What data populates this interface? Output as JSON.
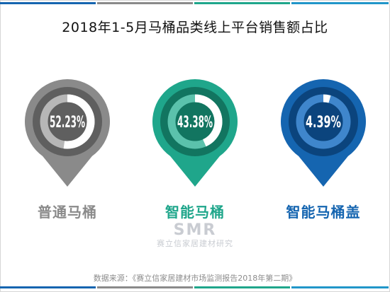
{
  "title": "2018年1-5月马桶品类线上平台销售额占比",
  "chart_data": {
    "type": "pie",
    "title": "2018年1-5月马桶品类线上平台销售额占比",
    "categories": [
      "普通马桶",
      "智能马桶",
      "智能马桶盖"
    ],
    "values": [
      52.23,
      43.38,
      4.39
    ],
    "value_labels": [
      "52.23%",
      "43.38%",
      "4.39%"
    ],
    "unit": "%",
    "colors": [
      "#8a8a8a",
      "#1fa68b",
      "#1565b0"
    ]
  },
  "pins": [
    {
      "name": "普通马桶",
      "label": "52.23%",
      "value": 52.23,
      "color": "#8a8a8a",
      "dark": "#5f5f5f",
      "ring_bg": "#b7b7b7",
      "label_color": "#8a8a8a"
    },
    {
      "name": "智能马桶",
      "label": "43.38%",
      "value": 43.38,
      "color": "#1fa68b",
      "dark": "#127560",
      "ring_bg": "#5bc2ac",
      "label_color": "#1fa68b"
    },
    {
      "name": "智能马桶盖",
      "label": "4.39%",
      "value": 4.39,
      "color": "#1565b0",
      "dark": "#0b447d",
      "ring_bg": "#3f86cc",
      "label_color": "#1565b0"
    }
  ],
  "stripes": [
    "#1565b0",
    "#8a8a8a",
    "#1fa68b",
    "#2196c9"
  ],
  "watermark": {
    "logo": "SMR",
    "text": "赛立信家居建材研究"
  },
  "source": "数据来源：《赛立信家居建材市场监测报告2018年第二期》"
}
